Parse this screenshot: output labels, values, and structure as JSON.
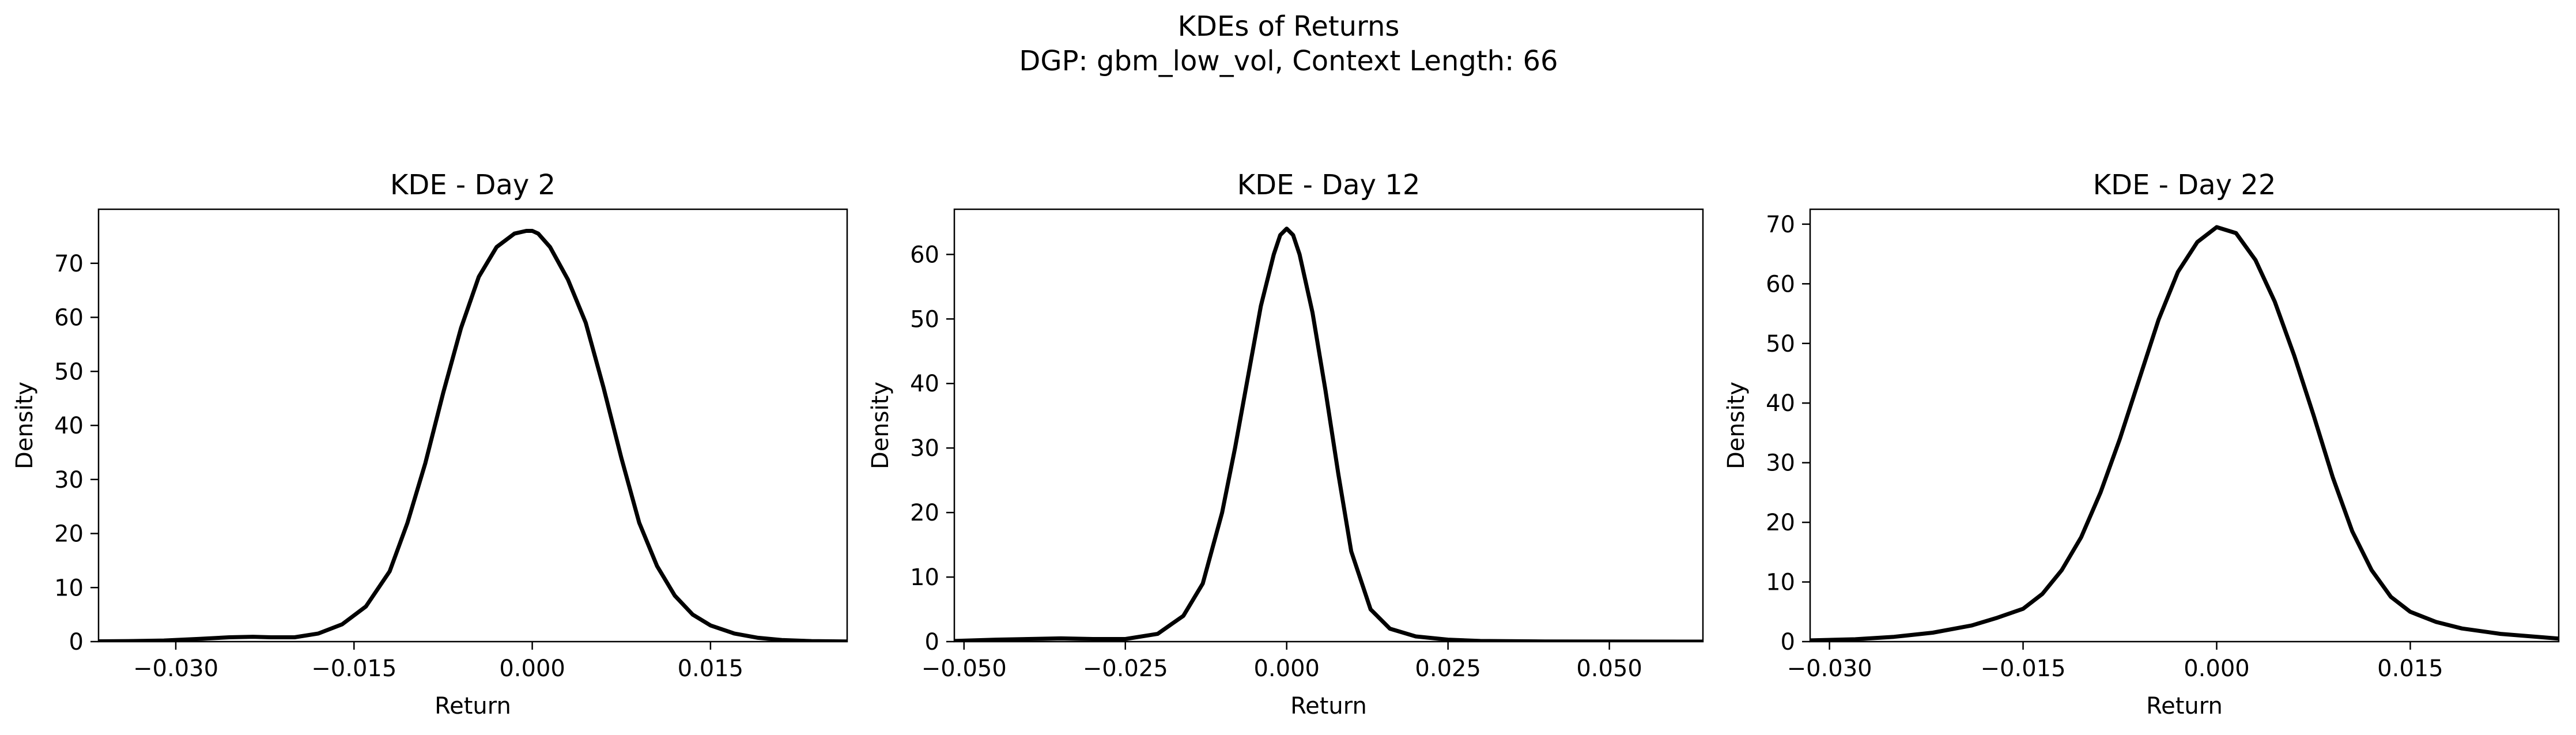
{
  "figure": {
    "suptitle_line1": "KDEs of Returns",
    "suptitle_line2": "DGP: gbm_low_vol, Context Length: 66"
  },
  "chart_data": [
    {
      "type": "line",
      "title": "KDE - Day 2",
      "xlabel": "Return",
      "ylabel": "Density",
      "xlim": [
        -0.0365,
        0.0265
      ],
      "ylim": [
        0,
        80
      ],
      "xticks": [
        -0.03,
        -0.015,
        0.0,
        0.015
      ],
      "xtick_labels": [
        "−0.030",
        "−0.015",
        "0.000",
        "0.015"
      ],
      "yticks": [
        0,
        10,
        20,
        30,
        40,
        50,
        60,
        70
      ],
      "ytick_labels": [
        "0",
        "10",
        "20",
        "30",
        "40",
        "50",
        "60",
        "70"
      ],
      "grid": false,
      "line_color": "#000000",
      "series": [
        {
          "x": [
            -0.0365,
            -0.034,
            -0.031,
            -0.028,
            -0.0255,
            -0.0235,
            -0.022,
            -0.02,
            -0.018,
            -0.016,
            -0.014,
            -0.012,
            -0.0105,
            -0.009,
            -0.0075,
            -0.006,
            -0.0045,
            -0.003,
            -0.0015,
            -0.0005,
            0.0,
            0.0005,
            0.0015,
            0.003,
            0.0045,
            0.006,
            0.0075,
            0.009,
            0.0105,
            0.012,
            0.0135,
            0.015,
            0.017,
            0.019,
            0.021,
            0.0235,
            0.0265
          ],
          "y": [
            0.05,
            0.1,
            0.2,
            0.5,
            0.8,
            0.9,
            0.8,
            0.8,
            1.5,
            3.2,
            6.5,
            13,
            22,
            33,
            46,
            58,
            67.5,
            73,
            75.5,
            76,
            76,
            75.5,
            73,
            67,
            59,
            47,
            34,
            22,
            14,
            8.5,
            5,
            3,
            1.5,
            0.7,
            0.3,
            0.1,
            0.03
          ]
        }
      ]
    },
    {
      "type": "line",
      "title": "KDE - Day 12",
      "xlabel": "Return",
      "ylabel": "Density",
      "xlim": [
        -0.0515,
        0.0645
      ],
      "ylim": [
        0,
        67
      ],
      "xticks": [
        -0.05,
        -0.025,
        0.0,
        0.025,
        0.05
      ],
      "xtick_labels": [
        "−0.050",
        "−0.025",
        "0.000",
        "0.025",
        "0.050"
      ],
      "yticks": [
        0,
        10,
        20,
        30,
        40,
        50,
        60
      ],
      "ytick_labels": [
        "0",
        "10",
        "20",
        "30",
        "40",
        "50",
        "60"
      ],
      "grid": false,
      "line_color": "#000000",
      "series": [
        {
          "x": [
            -0.0515,
            -0.045,
            -0.035,
            -0.03,
            -0.025,
            -0.02,
            -0.016,
            -0.013,
            -0.01,
            -0.008,
            -0.006,
            -0.004,
            -0.002,
            -0.001,
            0.0,
            0.001,
            0.002,
            0.004,
            0.006,
            0.008,
            0.01,
            0.013,
            0.016,
            0.02,
            0.025,
            0.03,
            0.04,
            0.05,
            0.0645
          ],
          "y": [
            0.1,
            0.3,
            0.5,
            0.4,
            0.4,
            1.2,
            4,
            9,
            20,
            30,
            41,
            52,
            60,
            63,
            64,
            63,
            60,
            51,
            39,
            26,
            14,
            5,
            2,
            0.8,
            0.3,
            0.1,
            0.03,
            0.01,
            0.0
          ]
        }
      ]
    },
    {
      "type": "line",
      "title": "KDE - Day 22",
      "xlabel": "Return",
      "ylabel": "Density",
      "xlim": [
        -0.0315,
        0.0265
      ],
      "ylim": [
        0,
        72.5
      ],
      "xticks": [
        -0.03,
        -0.015,
        0.0,
        0.015
      ],
      "xtick_labels": [
        "−0.030",
        "−0.015",
        "0.000",
        "0.015"
      ],
      "yticks": [
        0,
        10,
        20,
        30,
        40,
        50,
        60,
        70
      ],
      "ytick_labels": [
        "0",
        "10",
        "20",
        "30",
        "40",
        "50",
        "60",
        "70"
      ],
      "grid": false,
      "line_color": "#000000",
      "series": [
        {
          "x": [
            -0.0315,
            -0.028,
            -0.025,
            -0.022,
            -0.019,
            -0.017,
            -0.015,
            -0.0135,
            -0.012,
            -0.0105,
            -0.009,
            -0.0075,
            -0.006,
            -0.0045,
            -0.003,
            -0.0015,
            0.0,
            0.0015,
            0.003,
            0.0045,
            0.006,
            0.0075,
            0.009,
            0.0105,
            0.012,
            0.0135,
            0.015,
            0.017,
            0.019,
            0.022,
            0.0265
          ],
          "y": [
            0.2,
            0.4,
            0.8,
            1.5,
            2.7,
            4,
            5.5,
            8,
            12,
            17.5,
            25,
            34,
            44,
            54,
            62,
            67,
            69.5,
            68.5,
            64,
            57,
            48,
            38,
            27.5,
            18.5,
            12,
            7.5,
            5,
            3.3,
            2.2,
            1.3,
            0.5
          ]
        }
      ]
    }
  ]
}
